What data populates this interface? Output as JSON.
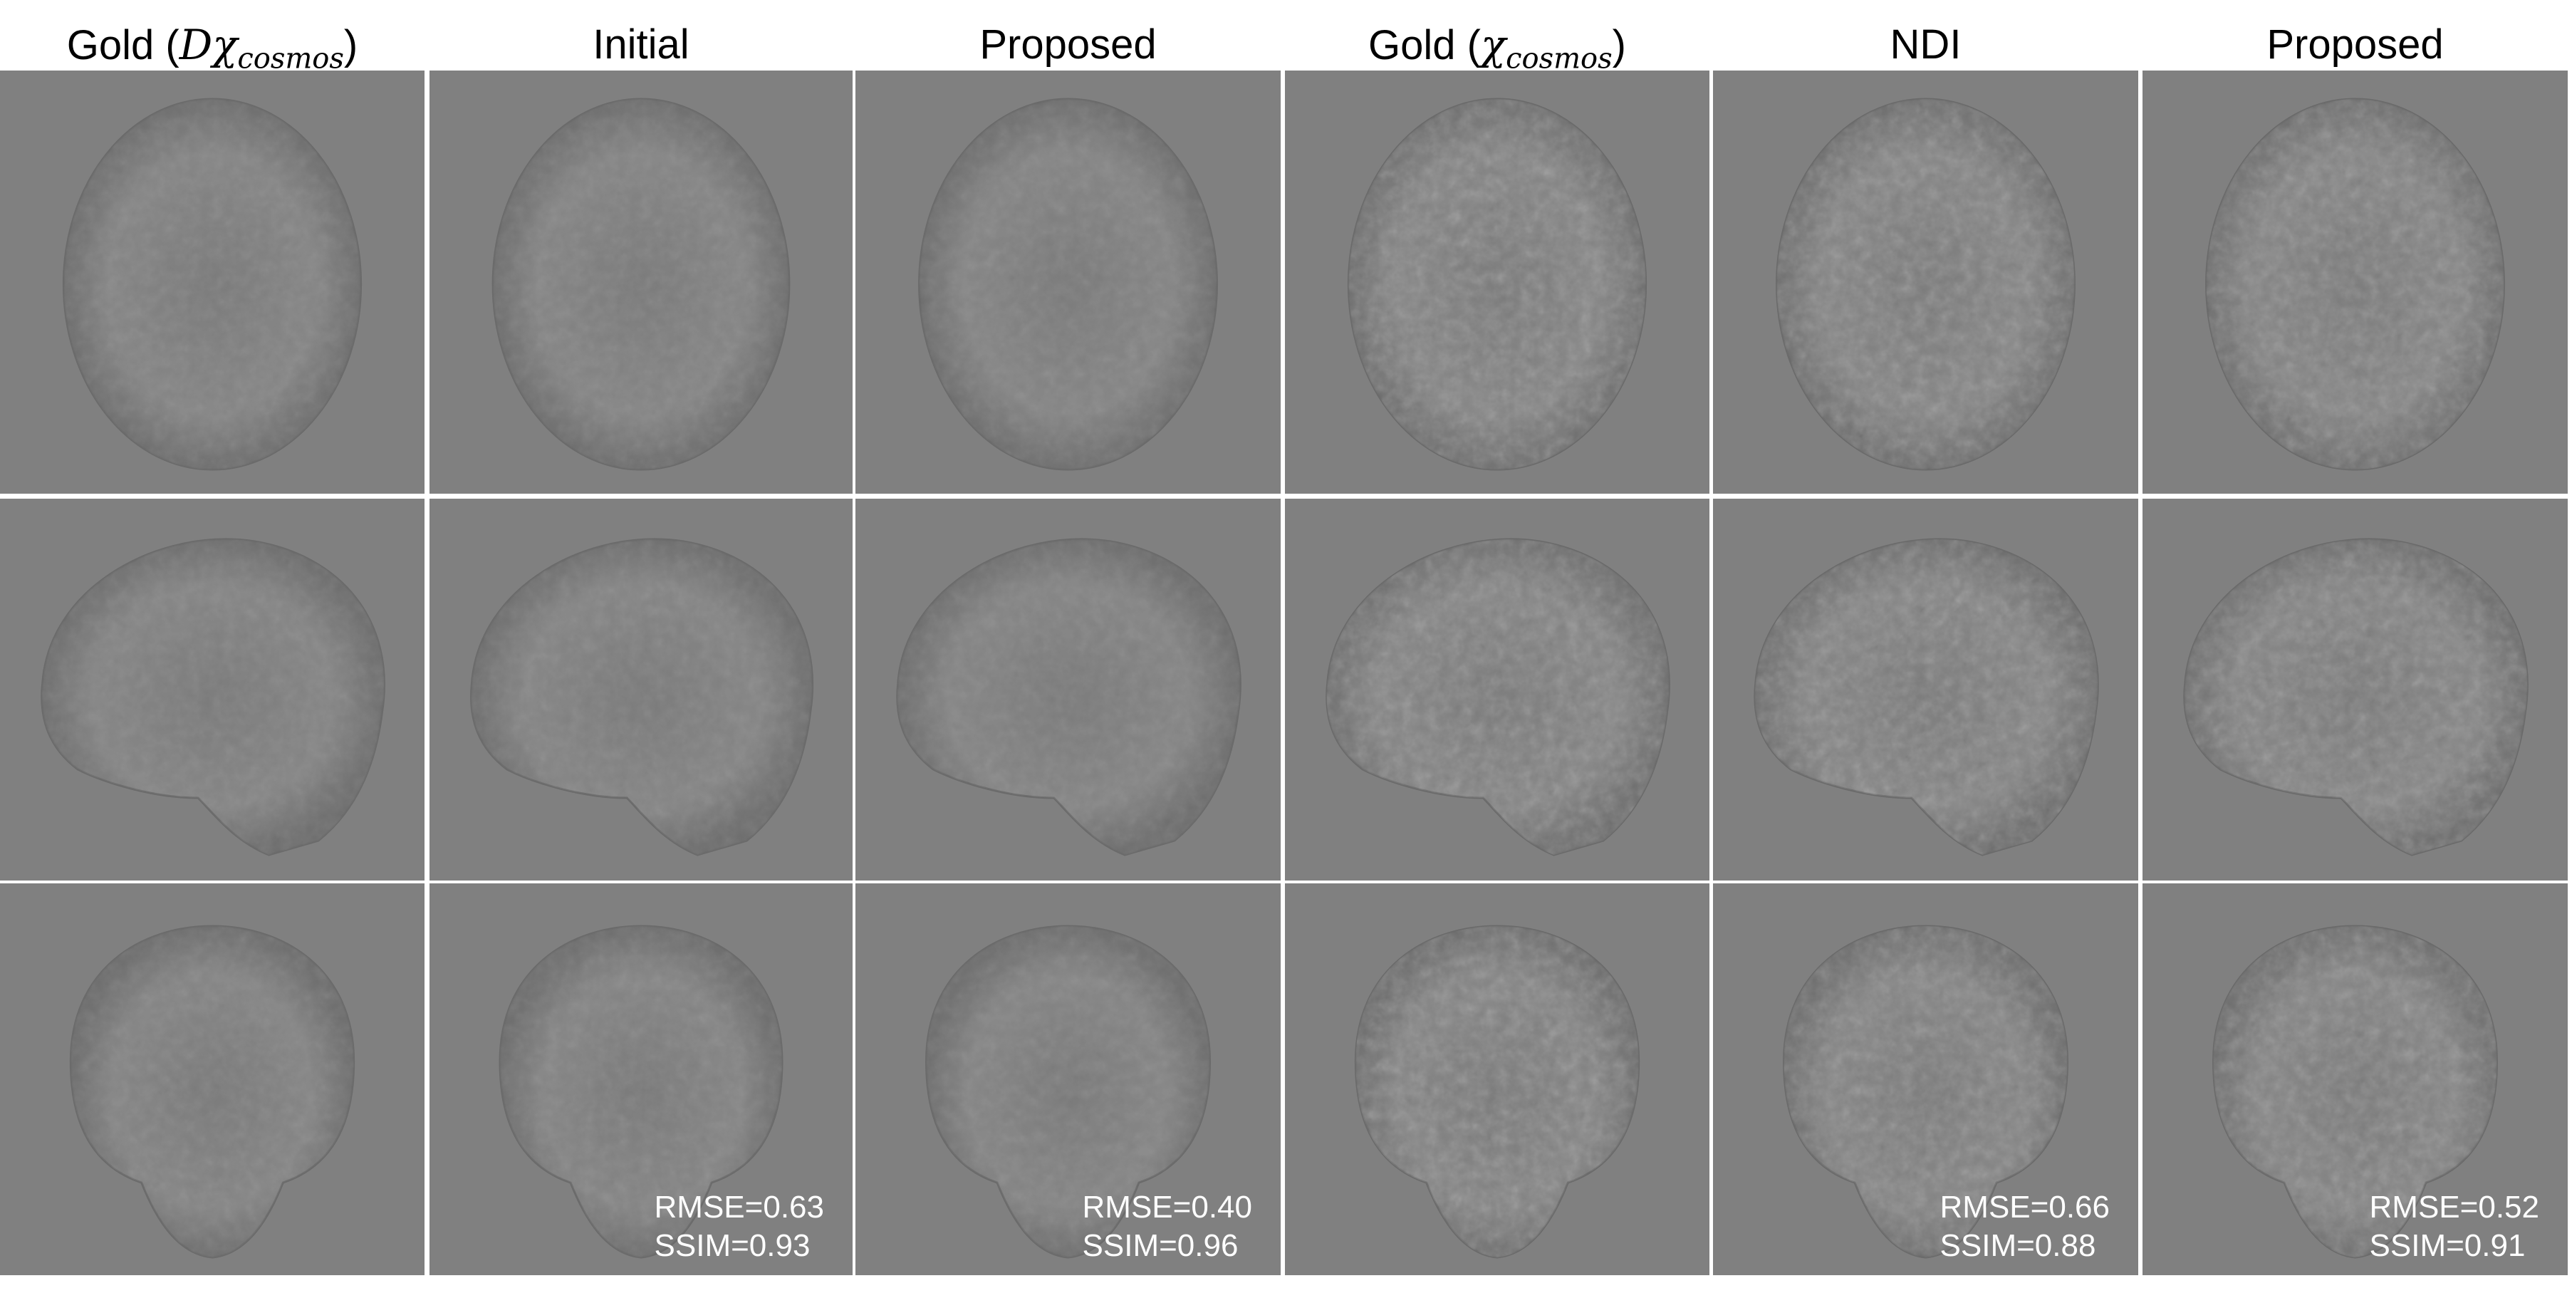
{
  "columns": [
    {
      "label": "Gold (",
      "math_main": "Dχ",
      "math_sub": "cosmos",
      "label_end": ")"
    },
    {
      "label": "Initial"
    },
    {
      "label": "Proposed"
    },
    {
      "label": "Gold (",
      "math_main": "χ",
      "math_sub": "cosmos",
      "label_end": ")"
    },
    {
      "label": "NDI"
    },
    {
      "label": "Proposed"
    }
  ],
  "rows": [
    "axial",
    "sagittal",
    "coronal"
  ],
  "metrics": [
    null,
    {
      "rmse": "RMSE=0.63",
      "ssim": "SSIM=0.93"
    },
    {
      "rmse": "RMSE=0.40",
      "ssim": "SSIM=0.96"
    },
    null,
    {
      "rmse": "RMSE=0.66",
      "ssim": "SSIM=0.88"
    },
    {
      "rmse": "RMSE=0.52",
      "ssim": "SSIM=0.91"
    }
  ],
  "colors": {
    "panel_background": "#808080",
    "metric_text": "#ffffff"
  }
}
